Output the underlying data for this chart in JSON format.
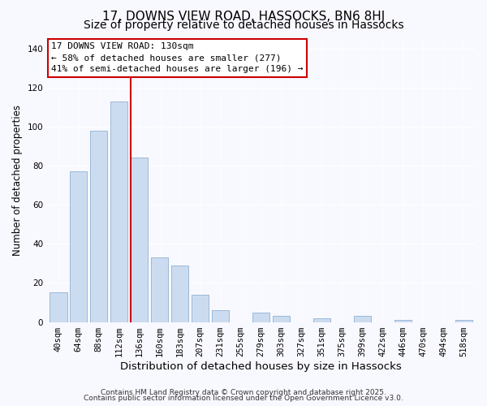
{
  "title": "17, DOWNS VIEW ROAD, HASSOCKS, BN6 8HJ",
  "subtitle": "Size of property relative to detached houses in Hassocks",
  "xlabel": "Distribution of detached houses by size in Hassocks",
  "ylabel": "Number of detached properties",
  "bar_labels": [
    "40sqm",
    "64sqm",
    "88sqm",
    "112sqm",
    "136sqm",
    "160sqm",
    "183sqm",
    "207sqm",
    "231sqm",
    "255sqm",
    "279sqm",
    "303sqm",
    "327sqm",
    "351sqm",
    "375sqm",
    "399sqm",
    "422sqm",
    "446sqm",
    "470sqm",
    "494sqm",
    "518sqm"
  ],
  "bar_values": [
    15,
    77,
    98,
    113,
    84,
    33,
    29,
    14,
    6,
    0,
    5,
    3,
    0,
    2,
    0,
    3,
    0,
    1,
    0,
    0,
    1
  ],
  "bar_color": "#ccdcf0",
  "bar_edge_color": "#9ab8d8",
  "vline_index": 4,
  "vline_color": "#cc0000",
  "annotation_line1": "17 DOWNS VIEW ROAD: 130sqm",
  "annotation_line2": "← 58% of detached houses are smaller (277)",
  "annotation_line3": "41% of semi-detached houses are larger (196) →",
  "ylim": [
    0,
    145
  ],
  "yticks": [
    0,
    20,
    40,
    60,
    80,
    100,
    120,
    140
  ],
  "footer1": "Contains HM Land Registry data © Crown copyright and database right 2025.",
  "footer2": "Contains public sector information licensed under the Open Government Licence v3.0.",
  "background_color": "#f8f8ff",
  "title_fontsize": 11,
  "subtitle_fontsize": 10,
  "xlabel_fontsize": 9.5,
  "ylabel_fontsize": 8.5,
  "tick_fontsize": 7.5,
  "annotation_fontsize": 8,
  "footer_fontsize": 6.5
}
